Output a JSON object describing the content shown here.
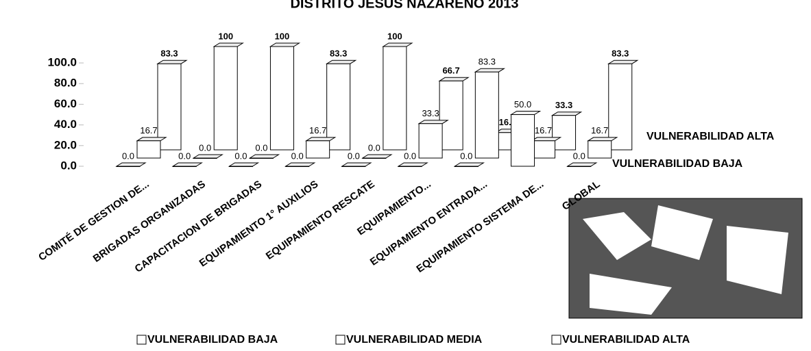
{
  "chart_data": {
    "type": "bar3d",
    "title": "DISTRITO JESUS NAZARENO 2013",
    "categories": [
      "COMITÉ DE GESTION DE...",
      "BRIGADAS ORGANIZADAS",
      "CAPACITACION DE BRIGADAS",
      "EQUIPAMIENTO 1° AUXILIOS",
      "EQUIPAMIENTO RESCATE",
      "EQUIPAMIENTO...",
      "EQUIPAMIENTO ENTRADA...",
      "EQUIPAMIENTO SISTEMA DE...",
      "GLOBAL"
    ],
    "series": [
      {
        "name": "VULNERABILIDAD BAJA",
        "color": "#ffffff",
        "values": [
          0,
          0,
          0,
          0,
          0,
          0,
          0,
          50,
          0
        ],
        "value_labels": [
          "0.0",
          "0.0",
          "0.0",
          "0.0",
          "0.0",
          "0.0",
          "0.0",
          "50.0",
          "0.0"
        ]
      },
      {
        "name": "VULNERABILIDAD MEDIA",
        "color": "#ffffff",
        "values": [
          16.7,
          0,
          0,
          16.7,
          0,
          33.3,
          83.3,
          16.7,
          16.7
        ],
        "value_labels": [
          "16.7",
          "0.0",
          "0.0",
          "16.7",
          "0.0",
          "33.3",
          "83.3",
          "16.7",
          "16.7"
        ]
      },
      {
        "name": "VULNERABILIDAD ALTA",
        "color": "#ffffff",
        "values": [
          83.3,
          100,
          100,
          83.3,
          100,
          66.7,
          16.7,
          33.3,
          83.3
        ]
      }
    ],
    "depth_labels": [
      "VULNERABILIDAD ALTA",
      "VULNERABILIDAD BAJA"
    ],
    "ylim": [
      0,
      100
    ],
    "yticks": [
      {
        "value": 0,
        "label": "0.0"
      },
      {
        "value": 20,
        "label": "20.0"
      },
      {
        "value": 40,
        "label": "40.0"
      },
      {
        "value": 60,
        "label": "60.0"
      },
      {
        "value": 80,
        "label": "80.0"
      },
      {
        "value": 100,
        "label": "100.0"
      }
    ]
  }
}
